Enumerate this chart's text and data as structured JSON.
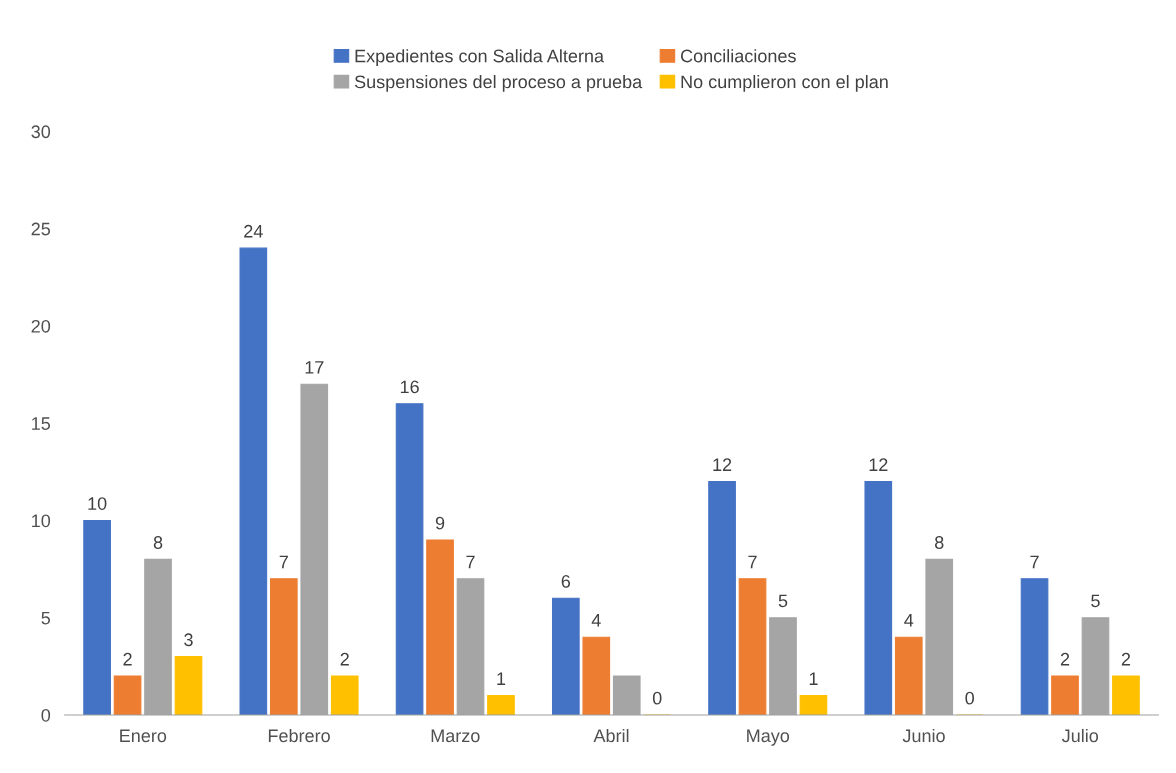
{
  "chart_data": {
    "type": "bar",
    "categories": [
      "Enero",
      "Febrero",
      "Marzo",
      "Abril",
      "Mayo",
      "Junio",
      "Julio"
    ],
    "series": [
      {
        "name": "Expedientes con Salida Alterna",
        "color": "#4472c4",
        "values": [
          10,
          24,
          16,
          6,
          12,
          12,
          7
        ],
        "value_labels": [
          "10",
          "24",
          "16",
          "6",
          "12",
          "12",
          "7"
        ]
      },
      {
        "name": "Conciliaciones",
        "color": "#ed7d31",
        "values": [
          2,
          7,
          9,
          4,
          7,
          4,
          2
        ],
        "value_labels": [
          "2",
          "7",
          "9",
          "4",
          "7",
          "4",
          "2"
        ]
      },
      {
        "name": "Suspensiones del proceso a prueba",
        "color": "#a5a5a5",
        "values": [
          8,
          17,
          7,
          2,
          5,
          8,
          5
        ],
        "value_labels": [
          "8",
          "17",
          "7",
          null,
          "5",
          "8",
          "5"
        ]
      },
      {
        "name": "No cumplieron con el plan",
        "color": "#ffc000",
        "values": [
          3,
          2,
          1,
          0,
          1,
          0,
          2
        ],
        "value_labels": [
          "3",
          "2",
          "1",
          "0",
          "1",
          "0",
          "2"
        ]
      }
    ],
    "ylim": [
      0,
      30
    ],
    "yticks": [
      0,
      5,
      10,
      15,
      20,
      25,
      30
    ],
    "grid": false,
    "legend": "top"
  }
}
